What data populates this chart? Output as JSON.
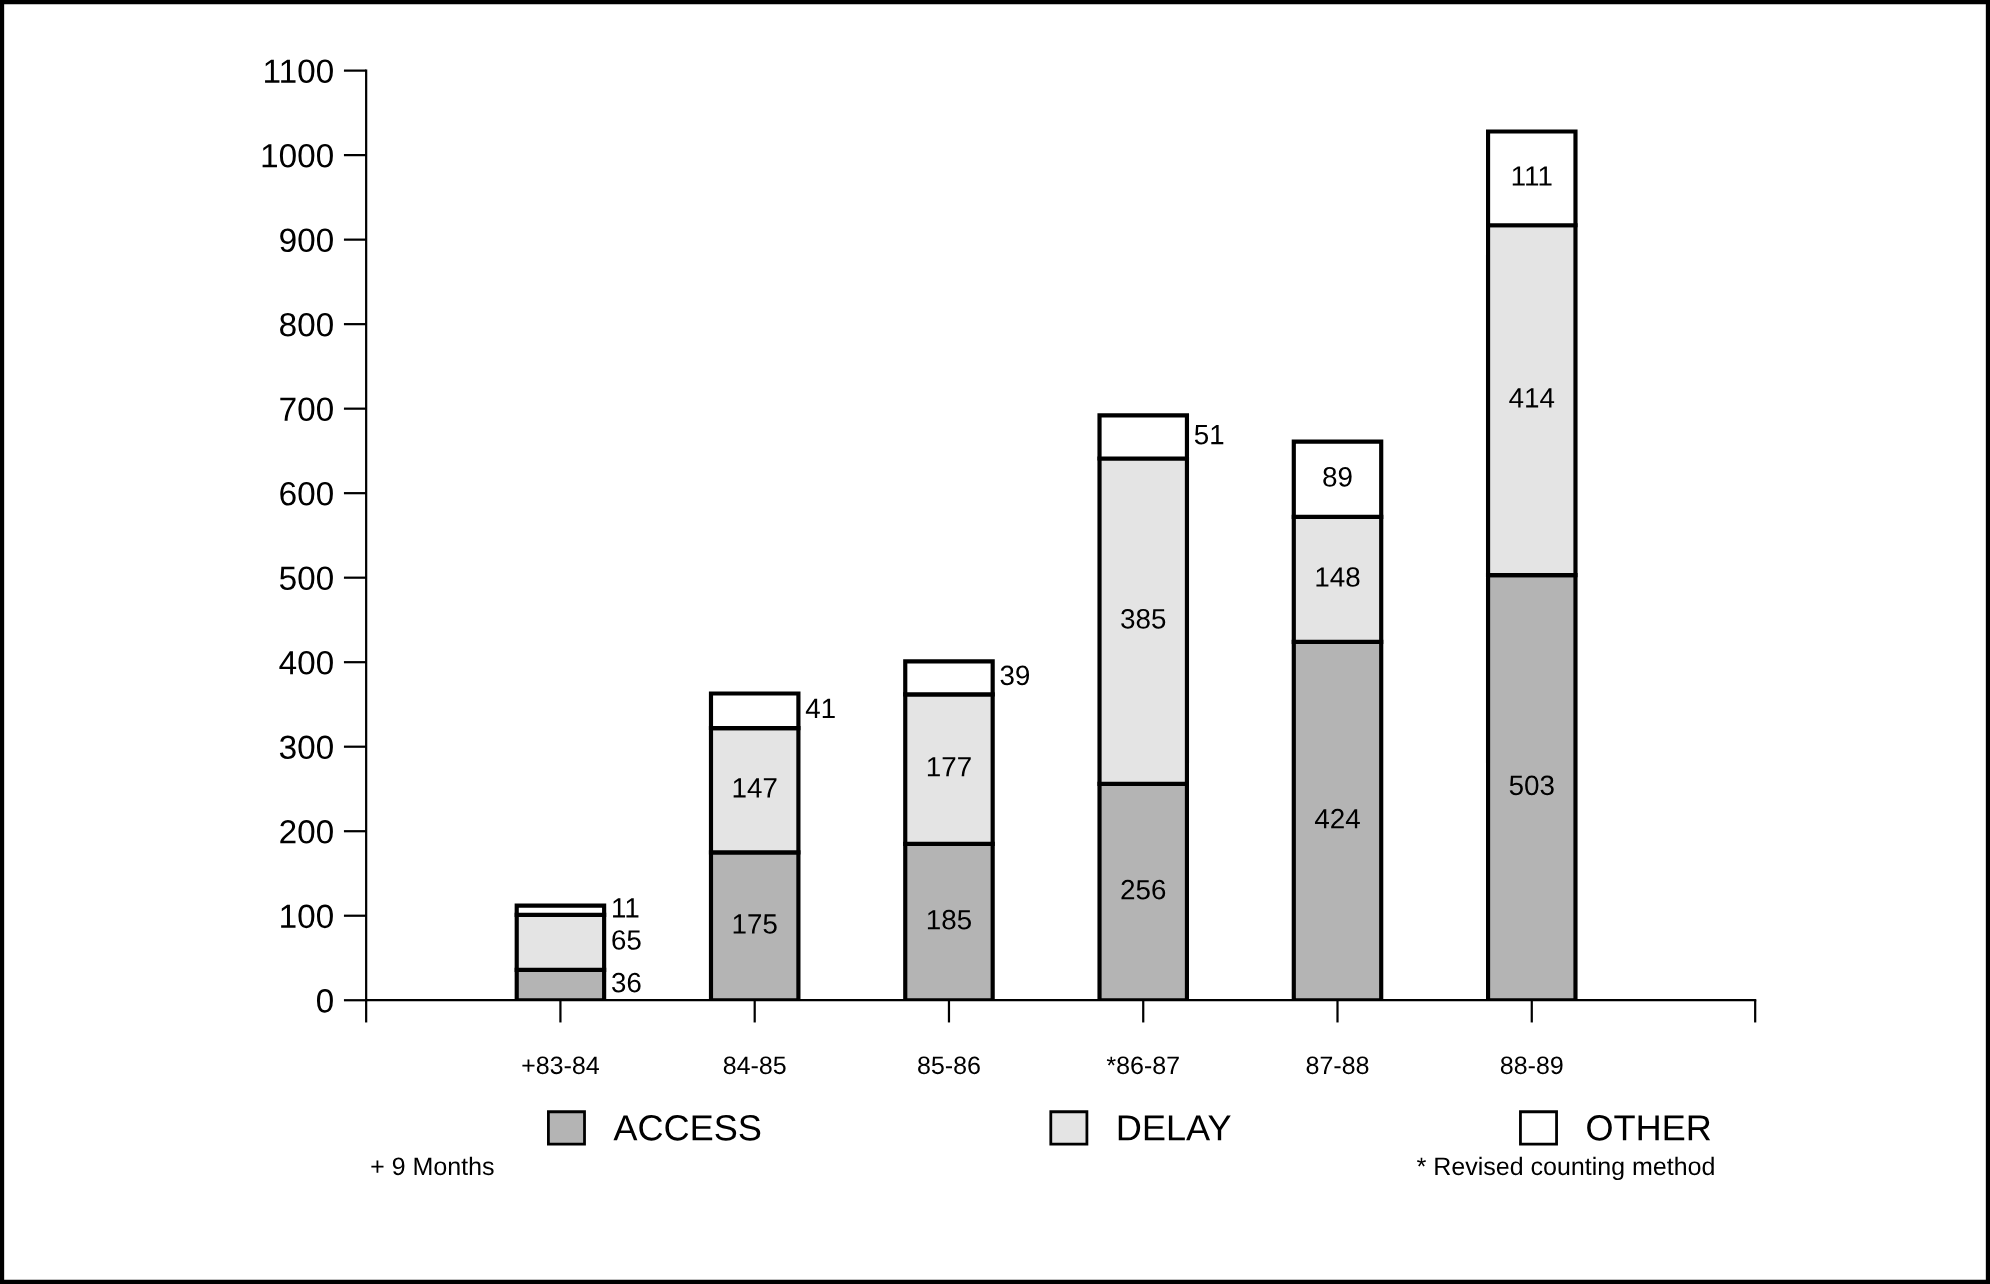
{
  "chart_data": {
    "type": "bar",
    "stacked": true,
    "categories": [
      "+83-84",
      "84-85",
      "85-86",
      "*86-87",
      "87-88",
      "88-89"
    ],
    "series": [
      {
        "name": "ACCESS",
        "color": "#b4b4b4",
        "values": [
          36,
          175,
          185,
          256,
          424,
          503
        ]
      },
      {
        "name": "DELAY",
        "color": "#e4e4e4",
        "values": [
          65,
          147,
          177,
          385,
          148,
          414
        ]
      },
      {
        "name": "OTHER",
        "color": "#ffffff",
        "values": [
          11,
          41,
          39,
          51,
          89,
          111
        ]
      }
    ],
    "ylim": [
      0,
      1100
    ],
    "yticks": [
      0,
      100,
      200,
      300,
      400,
      500,
      600,
      700,
      800,
      900,
      1000,
      1100
    ],
    "data_labels": true,
    "grid": false,
    "legend": "bottom",
    "annotations": [
      "+ 9 Months",
      "* Revised counting method"
    ]
  }
}
